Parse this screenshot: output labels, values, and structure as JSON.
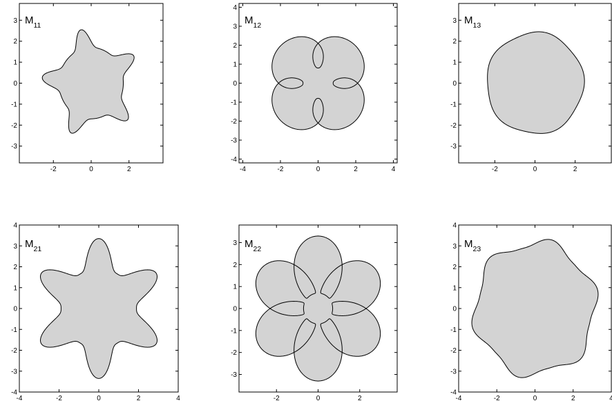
{
  "figure": {
    "fill_color": "#d3d3d3",
    "stroke_color": "#000000",
    "panels": [
      {
        "id": "M11",
        "label_main": "M",
        "label_sub": "11",
        "xlim": [
          -3.8,
          3.8
        ],
        "ylim": [
          -3.8,
          3.8
        ],
        "xticks": [
          "-2",
          "0",
          "2"
        ],
        "yticks": [
          "-3",
          "-2",
          "-1",
          "0",
          "1",
          "2",
          "3"
        ],
        "shape": {
          "base": 1.7,
          "petals": 5,
          "sharpness": 8,
          "amplitude": 0.9,
          "rotation_deg": 30,
          "twist": 0
        }
      },
      {
        "id": "M12",
        "label_main": "M",
        "label_sub": "12",
        "xlim": [
          -4.2,
          4.2
        ],
        "ylim": [
          -4.2,
          4.2
        ],
        "xticks": [
          "-4",
          "-2",
          "0",
          "2",
          "4"
        ],
        "yticks": [
          "-4",
          "-3",
          "-2",
          "-1",
          "0",
          "1",
          "2",
          "3",
          "4"
        ],
        "shape": {
          "base": 0.8,
          "petals": 4,
          "sharpness": 2.5,
          "amplitude": 2.0,
          "rotation_deg": 45,
          "twist": 0.55
        }
      },
      {
        "id": "M13",
        "label_main": "M",
        "label_sub": "13",
        "xlim": [
          -3.8,
          3.8
        ],
        "ylim": [
          -3.8,
          3.8
        ],
        "xticks": [
          "-2",
          "0",
          "2"
        ],
        "yticks": [
          "-3",
          "-2",
          "-1",
          "0",
          "1",
          "2",
          "3"
        ],
        "shape": {
          "base": 2.35,
          "petals": 5,
          "sharpness": 2,
          "amplitude": 0.12,
          "rotation_deg": 78,
          "twist": 0
        }
      },
      {
        "id": "M21",
        "label_main": "M",
        "label_sub": "21",
        "xlim": [
          -4,
          4
        ],
        "ylim": [
          -4,
          4
        ],
        "xticks": [
          "-4",
          "-2",
          "0",
          "2",
          "4"
        ],
        "yticks": [
          "-4",
          "-3",
          "-2",
          "-1",
          "0",
          "1",
          "2",
          "3",
          "4"
        ],
        "shape": {
          "base": 1.9,
          "petals": 6,
          "sharpness": 3,
          "amplitude": 1.45,
          "rotation_deg": 90,
          "twist": 0
        }
      },
      {
        "id": "M22",
        "label_main": "M",
        "label_sub": "22",
        "xlim": [
          -3.8,
          3.8
        ],
        "ylim": [
          -3.8,
          3.8
        ],
        "xticks": [
          "-2",
          "0",
          "2"
        ],
        "yticks": [
          "-3",
          "-2",
          "-1",
          "0",
          "1",
          "2",
          "3"
        ],
        "shape": {
          "base": 0.7,
          "petals": 6,
          "sharpness": 7,
          "amplitude": 2.6,
          "rotation_deg": 90,
          "twist": 0.6
        }
      },
      {
        "id": "M23",
        "label_main": "M",
        "label_sub": "23",
        "xlim": [
          -4,
          4
        ],
        "ylim": [
          -4,
          4
        ],
        "xticks": [
          "-4",
          "-2",
          "0",
          "2",
          "4"
        ],
        "yticks": [
          "-4",
          "-3",
          "-2",
          "-1",
          "0",
          "1",
          "2",
          "3",
          "4"
        ],
        "shape": {
          "base": 2.95,
          "petals": 6,
          "sharpness": 3,
          "amplitude": 0.45,
          "rotation_deg": 75,
          "twist": 0
        }
      }
    ]
  }
}
